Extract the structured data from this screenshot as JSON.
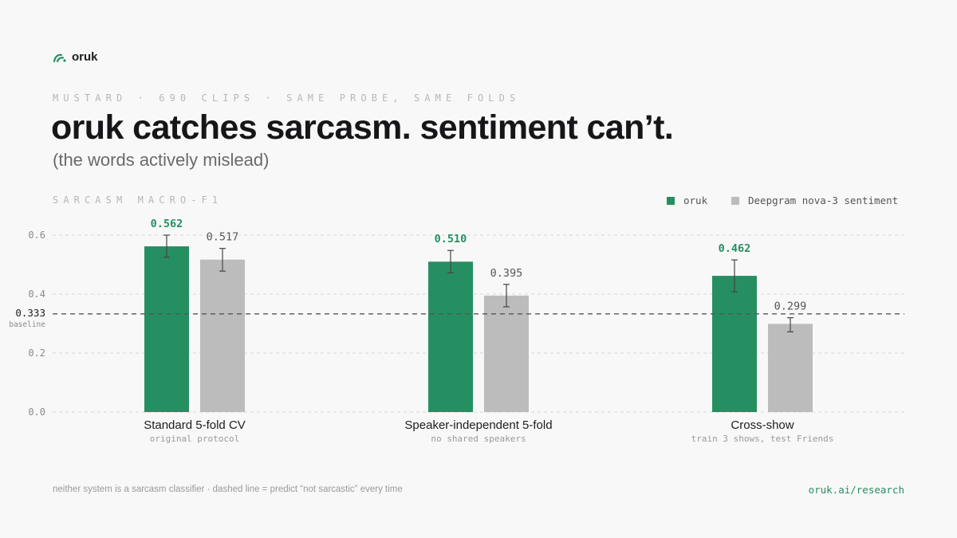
{
  "brand": {
    "name": "oruk",
    "logo_icon": "oruk-wave-icon"
  },
  "kicker": "MUSTARD · 690 CLIPS · SAME PROBE, SAME FOLDS",
  "title": "oruk catches sarcasm. sentiment can’t.",
  "subtitle": "(the words actively mislead)",
  "footnote": "neither system is a sarcasm classifier · dashed line = predict “not sarcastic” every time",
  "footer_link": "oruk.ai/research",
  "colors": {
    "oruk": "#268f62",
    "deepgram": "#bcbcbd",
    "text_dark": "#1d1d1f",
    "muted": "#9a9a9a"
  },
  "chart_data": {
    "type": "bar",
    "ylabel": "SARCASM MACRO-F1",
    "ylim": [
      0,
      0.6
    ],
    "yticks": [
      "0.0",
      "0.2",
      "0.4",
      "0.6"
    ],
    "grid": true,
    "legend_position": "top-right",
    "categories": [
      "Standard 5-fold CV",
      "Speaker-independent 5-fold",
      "Cross-show"
    ],
    "category_notes": [
      "original protocol",
      "no shared speakers",
      "train 3 shows, test Friends"
    ],
    "series": [
      {
        "name": "oruk",
        "color": "#268f62",
        "values": [
          0.562,
          0.51,
          0.462
        ],
        "labels": [
          "0.562",
          "0.510",
          "0.462"
        ],
        "error": [
          [
            0.525,
            0.6
          ],
          [
            0.472,
            0.548
          ],
          [
            0.408,
            0.516
          ]
        ]
      },
      {
        "name": "Deepgram nova-3 sentiment",
        "color": "#bcbcbd",
        "values": [
          0.517,
          0.395,
          0.299
        ],
        "labels": [
          "0.517",
          "0.395",
          "0.299"
        ],
        "error": [
          [
            0.478,
            0.555
          ],
          [
            0.357,
            0.433
          ],
          [
            0.272,
            0.32
          ]
        ]
      }
    ],
    "baseline": {
      "value": 0.333,
      "label": "0.333",
      "note": "baseline"
    }
  }
}
